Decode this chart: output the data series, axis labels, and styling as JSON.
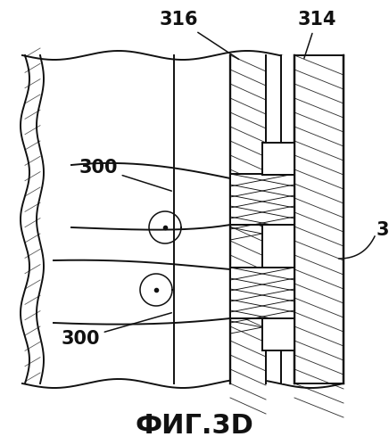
{
  "title": "ФИГ.3D",
  "bg_color": "#ffffff",
  "line_color": "#111111",
  "title_fontsize": 22,
  "label_fontsize": 15
}
